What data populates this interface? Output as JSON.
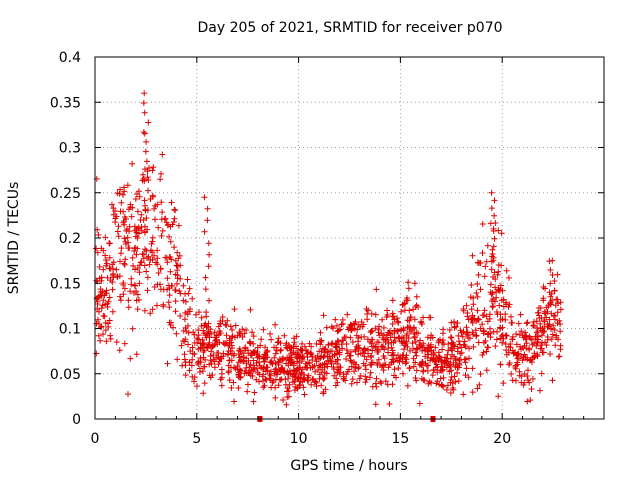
{
  "chart_data": {
    "type": "scatter",
    "title": "Day 205 of 2021, SRMTID for receiver p070",
    "xlabel": "GPS time / hours",
    "ylabel": "SRMTID / TECUs",
    "xlim": [
      0,
      25
    ],
    "ylim": [
      0,
      0.4
    ],
    "grid": true,
    "marker": "+",
    "color": "#e00000",
    "x_ticks": [
      0,
      5,
      10,
      15,
      20
    ],
    "x_tick_labels": [
      "0",
      "5",
      "10",
      "15",
      "20"
    ],
    "y_ticks": [
      0,
      0.05,
      0.1,
      0.15,
      0.2,
      0.25,
      0.3,
      0.35,
      0.4
    ],
    "y_tick_labels": [
      "0",
      "0.05",
      "0.1",
      "0.15",
      "0.2",
      "0.25",
      "0.3",
      "0.35",
      "0.4"
    ],
    "data_span_hours": [
      0,
      22.9
    ],
    "gap_markers_x": [
      8.1,
      16.6
    ],
    "profile": {
      "description": "approximate mean SRMTID trend",
      "x": [
        0,
        0.5,
        1,
        1.5,
        2,
        2.5,
        3,
        3.5,
        4,
        4.5,
        5,
        5.5,
        6,
        7,
        8,
        9,
        10,
        11,
        12,
        13,
        14,
        15,
        15.5,
        16,
        17,
        18,
        18.5,
        19,
        19.5,
        20,
        20.5,
        21,
        21.5,
        22,
        22.5,
        22.9
      ],
      "y": [
        0.16,
        0.14,
        0.17,
        0.19,
        0.18,
        0.22,
        0.2,
        0.17,
        0.15,
        0.11,
        0.07,
        0.08,
        0.08,
        0.07,
        0.06,
        0.06,
        0.055,
        0.065,
        0.07,
        0.08,
        0.08,
        0.085,
        0.1,
        0.08,
        0.065,
        0.07,
        0.1,
        0.13,
        0.14,
        0.13,
        0.07,
        0.075,
        0.07,
        0.09,
        0.12,
        0.1
      ]
    },
    "peaks": [
      {
        "x": 2.5,
        "y": 0.36
      },
      {
        "x": 5.5,
        "y": 0.245
      },
      {
        "x": 19.5,
        "y": 0.25
      }
    ]
  }
}
